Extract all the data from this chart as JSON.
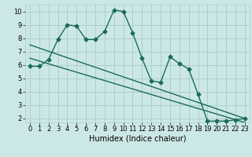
{
  "title": "",
  "xlabel": "Humidex (Indice chaleur)",
  "background_color": "#cce8e6",
  "grid_color": "#aacfcc",
  "line_color": "#1a6b5a",
  "xlim": [
    -0.5,
    23.5
  ],
  "ylim": [
    1.7,
    10.5
  ],
  "yticks": [
    2,
    3,
    4,
    5,
    6,
    7,
    8,
    9,
    10
  ],
  "xticks": [
    0,
    1,
    2,
    3,
    4,
    5,
    6,
    7,
    8,
    9,
    10,
    11,
    12,
    13,
    14,
    15,
    16,
    17,
    18,
    19,
    20,
    21,
    22,
    23
  ],
  "series1_x": [
    0,
    1,
    2,
    3,
    4,
    5,
    6,
    7,
    8,
    9,
    10,
    11,
    12,
    13,
    14,
    15,
    16,
    17,
    18,
    19,
    20,
    21,
    22,
    23
  ],
  "series1_y": [
    5.9,
    5.9,
    6.4,
    7.9,
    9.0,
    8.9,
    7.9,
    7.9,
    8.5,
    10.1,
    10.0,
    8.4,
    6.5,
    4.8,
    4.7,
    6.6,
    6.1,
    5.7,
    3.8,
    1.8,
    1.8,
    1.8,
    1.9,
    2.0
  ],
  "series2_x": [
    0,
    23
  ],
  "series2_y": [
    7.5,
    2.0
  ],
  "series3_x": [
    0,
    23
  ],
  "series3_y": [
    6.5,
    1.7
  ],
  "marker_size": 2.5,
  "line_width": 1.0,
  "font_size_tick": 6,
  "font_size_label": 7
}
